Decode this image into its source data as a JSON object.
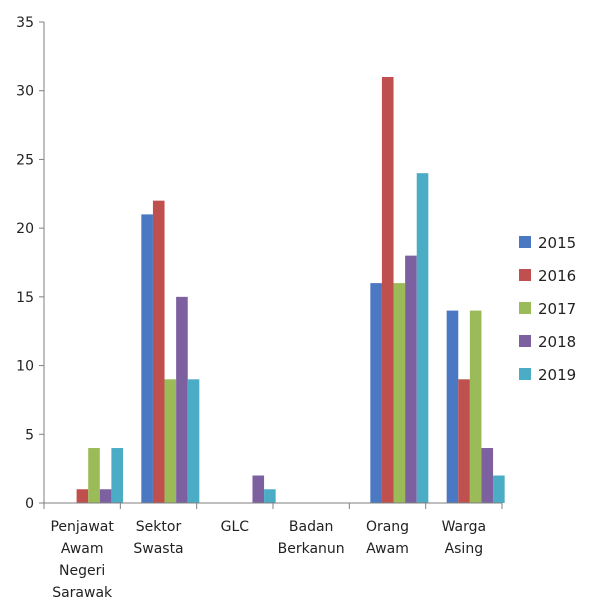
{
  "chart_data": {
    "type": "bar",
    "categories": [
      [
        "Penjawat",
        "Awam",
        "Negeri",
        "Sarawak"
      ],
      [
        "Sektor",
        "Swasta"
      ],
      [
        "GLC"
      ],
      [
        "Badan",
        "Berkanun"
      ],
      [
        "Orang",
        "Awam"
      ],
      [
        "Warga",
        "Asing"
      ]
    ],
    "series": [
      {
        "name": "2015",
        "color": "#4a78c2",
        "values": [
          0,
          21,
          0,
          0,
          16,
          14
        ]
      },
      {
        "name": "2016",
        "color": "#c0504d",
        "values": [
          1,
          22,
          0,
          0,
          31,
          9
        ]
      },
      {
        "name": "2017",
        "color": "#9bbb59",
        "values": [
          4,
          9,
          0,
          0,
          16,
          14
        ]
      },
      {
        "name": "2018",
        "color": "#7d60a0",
        "values": [
          1,
          15,
          2,
          0,
          18,
          4
        ]
      },
      {
        "name": "2019",
        "color": "#4bacc6",
        "values": [
          4,
          9,
          1,
          0,
          24,
          2
        ]
      }
    ],
    "ylim": [
      0,
      35
    ],
    "yticks": [
      0,
      5,
      10,
      15,
      20,
      25,
      30,
      35
    ],
    "title": "",
    "xlabel": "",
    "ylabel": "",
    "grid": false,
    "legend_position": "right"
  }
}
